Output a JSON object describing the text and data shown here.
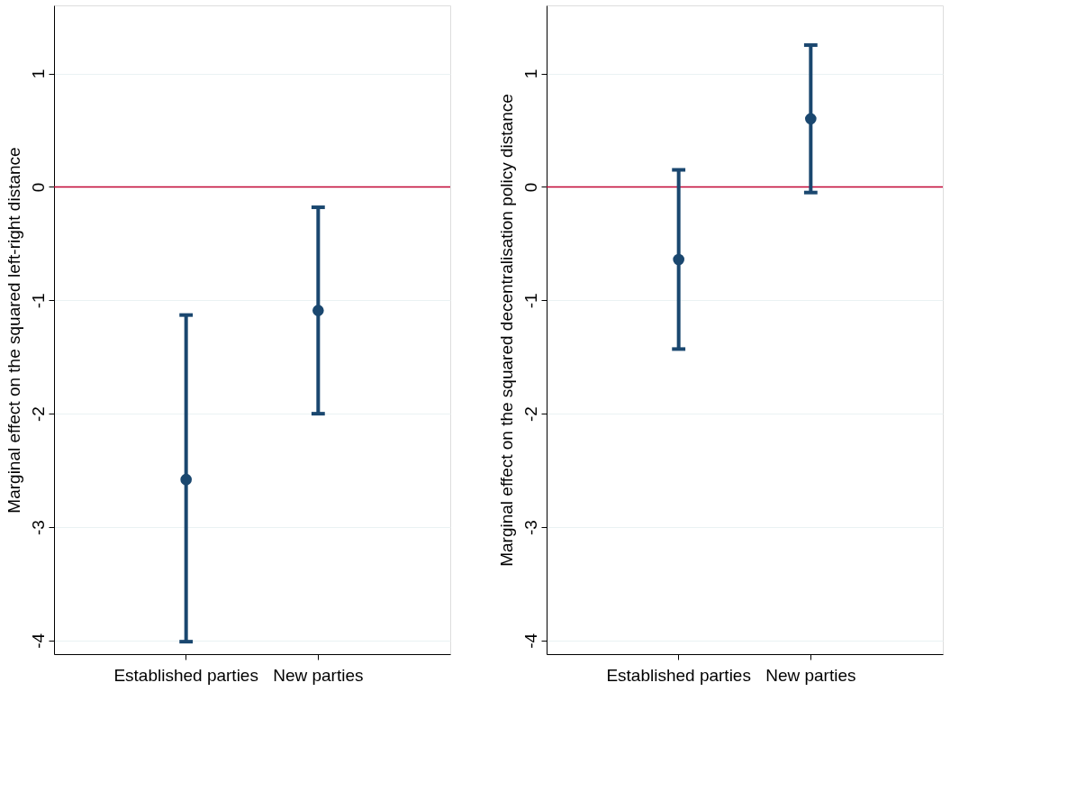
{
  "chart_data": [
    {
      "type": "scatter",
      "ylabel": "Marginal effect on the squared left-right distance",
      "categories": [
        "Established parties",
        "New parties"
      ],
      "values": [
        -2.58,
        -1.09
      ],
      "errors": [
        [
          -4.01,
          -1.13
        ],
        [
          -2.0,
          -0.18
        ]
      ],
      "color": "#1a476f",
      "marker": "circle",
      "ylim": [
        -4.12,
        1.6
      ],
      "yticks": [
        -4,
        -3,
        -2,
        -1,
        0,
        1
      ],
      "grid": "y",
      "ref_lines": [
        {
          "axis": "y",
          "value": 0,
          "color": "#c10534"
        }
      ]
    },
    {
      "type": "scatter",
      "ylabel": "Marginal effect on the squared decentralisation policy distance",
      "categories": [
        "Established parties",
        "New parties"
      ],
      "values": [
        -0.64,
        0.6
      ],
      "errors": [
        [
          -1.43,
          0.15
        ],
        [
          -0.05,
          1.25
        ]
      ],
      "color": "#1a476f",
      "marker": "circle",
      "ylim": [
        -4.12,
        1.6
      ],
      "yticks": [
        -4,
        -3,
        -2,
        -1,
        0,
        1
      ],
      "grid": "y",
      "ref_lines": [
        {
          "axis": "y",
          "value": 0,
          "color": "#c10534"
        }
      ]
    }
  ]
}
